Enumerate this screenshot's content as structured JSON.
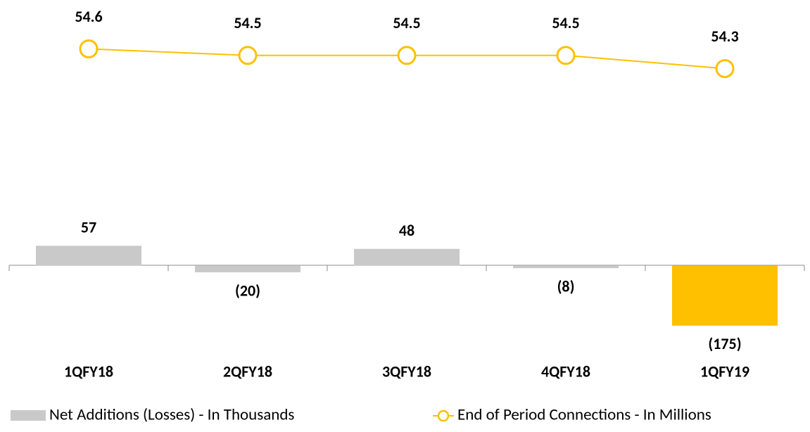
{
  "chart_data": {
    "type": "bar-line",
    "categories": [
      "1QFY18",
      "2QFY18",
      "3QFY18",
      "4QFY18",
      "1QFY19"
    ],
    "series": [
      {
        "name": "Net Additions (Losses) - In Thousands",
        "type": "bar",
        "color": "#c9c9c9",
        "colors": [
          "#c9c9c9",
          "#c9c9c9",
          "#c9c9c9",
          "#c9c9c9",
          "#ffc000"
        ],
        "values": [
          57,
          -20,
          48,
          -8,
          -175
        ],
        "value_labels": [
          "57",
          "(20)",
          "48",
          "(8)",
          "(175)"
        ]
      },
      {
        "name": "End of Period Connections - In Millions",
        "type": "line",
        "color": "#ffc000",
        "axis": "y2",
        "values": [
          54.6,
          54.5,
          54.5,
          54.5,
          54.3
        ]
      }
    ],
    "ylim": [
      -210,
      730
    ],
    "y2lim": [
      50.2,
      55.13
    ]
  }
}
